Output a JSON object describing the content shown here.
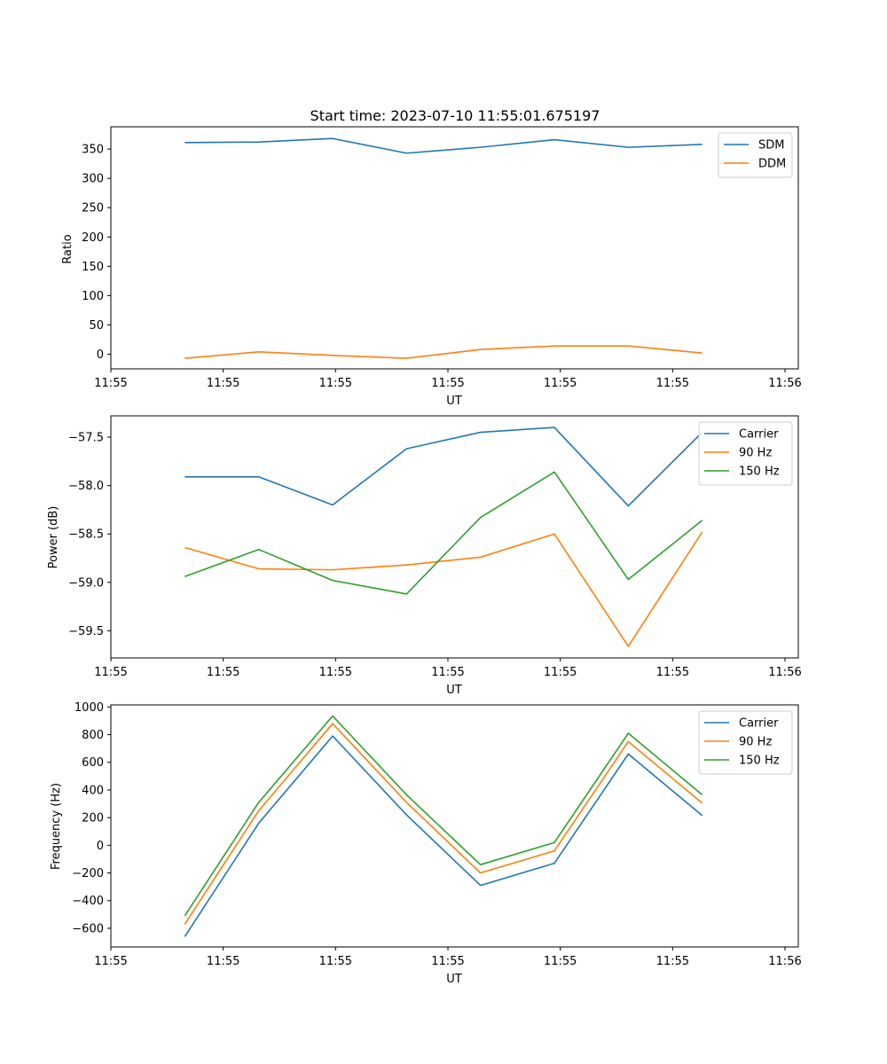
{
  "chart_data": [
    {
      "type": "line",
      "title": "Start time: 2023-07-10 11:55:01.675197",
      "xlabel": "UT",
      "ylabel": "Ratio",
      "x_index": [
        1,
        2,
        3,
        4,
        5,
        6,
        7,
        8
      ],
      "xlim": [
        0,
        9.3
      ],
      "x_ticks": [
        {
          "pos": 0,
          "label": "11:55"
        },
        {
          "pos": 1.52,
          "label": "11:55"
        },
        {
          "pos": 3.04,
          "label": "11:55"
        },
        {
          "pos": 4.56,
          "label": "11:55"
        },
        {
          "pos": 6.08,
          "label": "11:55"
        },
        {
          "pos": 7.6,
          "label": "11:55"
        },
        {
          "pos": 9.12,
          "label": "11:56"
        }
      ],
      "ylim": [
        -25,
        388
      ],
      "y_ticks": [
        0,
        50,
        100,
        150,
        200,
        250,
        300,
        350
      ],
      "legend_position": "top-right",
      "series": [
        {
          "name": "SDM",
          "color": "#1f77b4",
          "values": [
            361,
            362,
            368,
            343,
            353,
            366,
            353,
            358
          ]
        },
        {
          "name": "DDM",
          "color": "#ff7f0e",
          "values": [
            -7,
            4,
            -2,
            -7,
            8,
            14,
            14,
            2
          ]
        }
      ]
    },
    {
      "type": "line",
      "title": "",
      "xlabel": "UT",
      "ylabel": "Power (dB)",
      "x_index": [
        1,
        2,
        3,
        4,
        5,
        6,
        7,
        8
      ],
      "xlim": [
        0,
        9.3
      ],
      "x_ticks": [
        {
          "pos": 0,
          "label": "11:55"
        },
        {
          "pos": 1.52,
          "label": "11:55"
        },
        {
          "pos": 3.04,
          "label": "11:55"
        },
        {
          "pos": 4.56,
          "label": "11:55"
        },
        {
          "pos": 6.08,
          "label": "11:55"
        },
        {
          "pos": 7.6,
          "label": "11:55"
        },
        {
          "pos": 9.12,
          "label": "11:56"
        }
      ],
      "ylim": [
        -59.78,
        -57.28
      ],
      "y_ticks": [
        -59.5,
        -59.0,
        -58.5,
        -58.0,
        -57.5
      ],
      "y_tick_labels": [
        "−59.5",
        "−59.0",
        "−58.5",
        "−58.0",
        "−57.5"
      ],
      "legend_position": "top-right",
      "series": [
        {
          "name": "Carrier",
          "color": "#1f77b4",
          "values": [
            -57.91,
            -57.91,
            -58.2,
            -57.62,
            -57.45,
            -57.4,
            -58.21,
            -57.45
          ]
        },
        {
          "name": "90 Hz",
          "color": "#ff7f0e",
          "values": [
            -58.64,
            -58.86,
            -58.87,
            -58.82,
            -58.74,
            -58.5,
            -59.66,
            -58.48
          ]
        },
        {
          "name": "150 Hz",
          "color": "#2ca02c",
          "values": [
            -58.94,
            -58.66,
            -58.98,
            -59.12,
            -58.33,
            -57.86,
            -58.97,
            -58.36
          ]
        }
      ]
    },
    {
      "type": "line",
      "title": "",
      "xlabel": "UT",
      "ylabel": "Frequency (Hz)",
      "x_index": [
        1,
        2,
        3,
        4,
        5,
        6,
        7,
        8
      ],
      "xlim": [
        0,
        9.3
      ],
      "x_ticks": [
        {
          "pos": 0,
          "label": "11:55"
        },
        {
          "pos": 1.52,
          "label": "11:55"
        },
        {
          "pos": 3.04,
          "label": "11:55"
        },
        {
          "pos": 4.56,
          "label": "11:55"
        },
        {
          "pos": 6.08,
          "label": "11:55"
        },
        {
          "pos": 7.6,
          "label": "11:55"
        },
        {
          "pos": 9.12,
          "label": "11:56"
        }
      ],
      "ylim": [
        -735,
        1015
      ],
      "y_ticks": [
        -600,
        -400,
        -200,
        0,
        200,
        400,
        600,
        800,
        1000
      ],
      "y_tick_labels": [
        "−600",
        "−400",
        "−200",
        "0",
        "200",
        "400",
        "600",
        "800",
        "1000"
      ],
      "legend_position": "top-right",
      "series": [
        {
          "name": "Carrier",
          "color": "#1f77b4",
          "values": [
            -660,
            160,
            790,
            220,
            -290,
            -130,
            660,
            215
          ]
        },
        {
          "name": "90 Hz",
          "color": "#ff7f0e",
          "values": [
            -570,
            250,
            880,
            310,
            -200,
            -40,
            750,
            305
          ]
        },
        {
          "name": "150 Hz",
          "color": "#2ca02c",
          "values": [
            -510,
            310,
            935,
            365,
            -140,
            20,
            810,
            365
          ]
        }
      ]
    }
  ]
}
